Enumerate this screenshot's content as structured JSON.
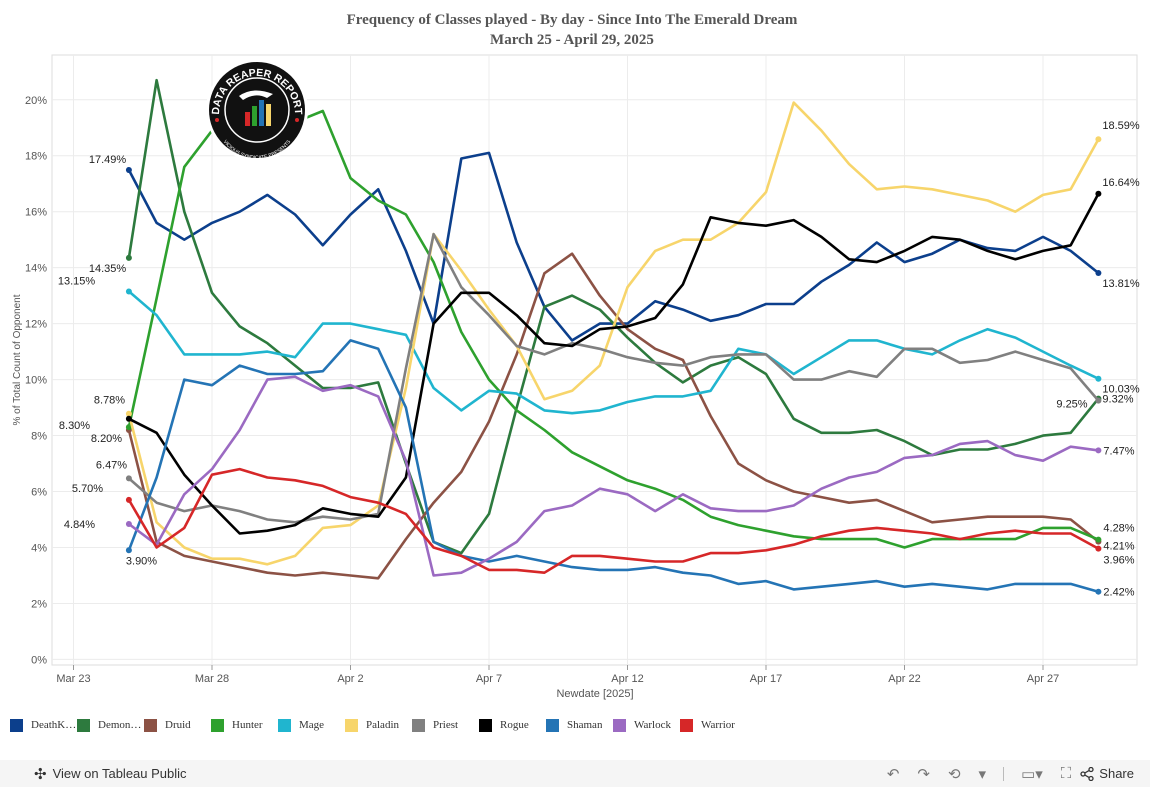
{
  "chart_data": {
    "type": "line",
    "title": "Frequency of Classes played - By day - Since Into The Emerald Dream",
    "subtitle": "March 25 - April 29, 2025",
    "xlabel": "Newdate [2025]",
    "ylabel": "% of Total Count of Opponent",
    "x": [
      "2025-03-25",
      "2025-03-26",
      "2025-03-27",
      "2025-03-28",
      "2025-03-29",
      "2025-03-30",
      "2025-03-31",
      "2025-04-01",
      "2025-04-02",
      "2025-04-03",
      "2025-04-04",
      "2025-04-05",
      "2025-04-06",
      "2025-04-07",
      "2025-04-08",
      "2025-04-09",
      "2025-04-10",
      "2025-04-11",
      "2025-04-12",
      "2025-04-13",
      "2025-04-14",
      "2025-04-15",
      "2025-04-16",
      "2025-04-17",
      "2025-04-18",
      "2025-04-19",
      "2025-04-20",
      "2025-04-21",
      "2025-04-22",
      "2025-04-23",
      "2025-04-24",
      "2025-04-25",
      "2025-04-26",
      "2025-04-27",
      "2025-04-28",
      "2025-04-29"
    ],
    "x_ticks": [
      "Mar 23",
      "Mar 28",
      "Apr 2",
      "Apr 7",
      "Apr 12",
      "Apr 17",
      "Apr 22",
      "Apr 27"
    ],
    "y_ticks": [
      "0%",
      "2%",
      "4%",
      "6%",
      "8%",
      "10%",
      "12%",
      "14%",
      "16%",
      "18%",
      "20%"
    ],
    "ylim": [
      -0.2,
      21.6
    ],
    "grid": true,
    "legend_position": "bottom",
    "series": [
      {
        "name": "DeathK…",
        "color": "#0c3f8c",
        "start_label": "17.49%",
        "end_label": "13.81%",
        "values": [
          17.49,
          15.6,
          15.0,
          15.6,
          16.0,
          16.6,
          15.9,
          14.8,
          15.9,
          16.8,
          14.6,
          12.0,
          17.9,
          18.1,
          14.9,
          12.6,
          11.4,
          12.0,
          12.0,
          12.8,
          12.5,
          12.1,
          12.3,
          12.7,
          12.7,
          13.5,
          14.1,
          14.9,
          14.2,
          14.5,
          15.0,
          14.7,
          14.6,
          15.1,
          14.6,
          13.81
        ]
      },
      {
        "name": "Demon…",
        "color": "#2d7a3e",
        "start_label": "14.35%",
        "end_label": "9.32%",
        "values": [
          14.35,
          20.7,
          16.0,
          13.1,
          11.9,
          11.3,
          10.5,
          9.7,
          9.7,
          9.9,
          7.0,
          4.2,
          3.8,
          5.2,
          9.0,
          12.6,
          13.0,
          12.5,
          11.5,
          10.6,
          9.9,
          10.5,
          10.8,
          10.2,
          8.6,
          8.1,
          8.1,
          8.2,
          7.8,
          7.3,
          7.5,
          7.5,
          7.7,
          8.0,
          8.1,
          9.32
        ]
      },
      {
        "name": "Druid",
        "color": "#8c5245",
        "start_label": "8.20%",
        "end_label": "4.21%",
        "values": [
          8.2,
          4.2,
          3.7,
          3.5,
          3.3,
          3.1,
          3.0,
          3.1,
          3.0,
          2.9,
          4.3,
          5.6,
          6.7,
          8.5,
          10.9,
          13.8,
          14.5,
          13.0,
          11.8,
          11.1,
          10.7,
          8.7,
          7.0,
          6.4,
          6.0,
          5.8,
          5.6,
          5.7,
          5.3,
          4.9,
          5.0,
          5.1,
          5.1,
          5.1,
          5.0,
          4.21
        ]
      },
      {
        "name": "Hunter",
        "color": "#2ea12e",
        "start_label": "8.30%",
        "end_label": "4.28%",
        "values": [
          8.3,
          12.9,
          17.6,
          18.9,
          18.8,
          19.3,
          19.2,
          19.6,
          17.2,
          16.4,
          15.9,
          14.2,
          11.7,
          10.0,
          8.9,
          8.2,
          7.4,
          6.9,
          6.4,
          6.1,
          5.7,
          5.1,
          4.8,
          4.6,
          4.4,
          4.3,
          4.3,
          4.3,
          4.0,
          4.3,
          4.3,
          4.3,
          4.3,
          4.7,
          4.7,
          4.28
        ]
      },
      {
        "name": "Mage",
        "color": "#20b5cf",
        "start_label": "13.15%",
        "end_label": "10.03%",
        "values": [
          13.15,
          12.3,
          10.9,
          10.9,
          10.9,
          11.0,
          10.8,
          12.0,
          12.0,
          11.8,
          11.6,
          9.7,
          8.9,
          9.6,
          9.5,
          8.9,
          8.8,
          8.9,
          9.2,
          9.4,
          9.4,
          9.6,
          11.1,
          10.9,
          10.2,
          10.8,
          11.4,
          11.4,
          11.1,
          10.9,
          11.4,
          11.8,
          11.5,
          11.0,
          10.5,
          10.03
        ]
      },
      {
        "name": "Paladin",
        "color": "#f7d56b",
        "start_label": "8.78%",
        "end_label": "18.59%",
        "values": [
          8.78,
          4.9,
          4.0,
          3.6,
          3.6,
          3.4,
          3.7,
          4.7,
          4.8,
          5.5,
          9.7,
          15.2,
          13.9,
          12.5,
          11.2,
          9.3,
          9.6,
          10.5,
          13.3,
          14.6,
          15.0,
          15.0,
          15.6,
          16.7,
          19.9,
          18.9,
          17.7,
          16.8,
          16.9,
          16.8,
          16.6,
          16.4,
          16.0,
          16.6,
          16.8,
          18.59
        ]
      },
      {
        "name": "Priest",
        "color": "#808080",
        "start_label": "6.47%",
        "end_label": "9.25%",
        "values": [
          6.47,
          5.6,
          5.3,
          5.5,
          5.3,
          5.0,
          4.9,
          5.1,
          5.0,
          5.2,
          10.4,
          15.2,
          13.3,
          12.3,
          11.2,
          10.9,
          11.3,
          11.1,
          10.8,
          10.6,
          10.5,
          10.8,
          10.9,
          10.9,
          10.0,
          10.0,
          10.3,
          10.1,
          11.1,
          11.1,
          10.6,
          10.7,
          11.0,
          10.7,
          10.4,
          9.25
        ]
      },
      {
        "name": "Rogue",
        "color": "#000000",
        "start_label": "8.60%",
        "end_label": "16.64%",
        "values": [
          8.6,
          8.1,
          6.6,
          5.5,
          4.5,
          4.6,
          4.8,
          5.4,
          5.2,
          5.1,
          6.5,
          12.0,
          13.1,
          13.1,
          12.3,
          11.3,
          11.2,
          11.8,
          11.9,
          12.2,
          13.4,
          15.8,
          15.6,
          15.5,
          15.7,
          15.1,
          14.3,
          14.2,
          14.6,
          15.1,
          15.0,
          14.6,
          14.3,
          14.6,
          14.8,
          16.64
        ]
      },
      {
        "name": "Shaman",
        "color": "#2474b5",
        "start_label": "3.90%",
        "end_label": "2.42%",
        "values": [
          3.9,
          6.5,
          10.0,
          9.8,
          10.5,
          10.2,
          10.2,
          10.3,
          11.4,
          11.1,
          9.0,
          4.2,
          3.7,
          3.5,
          3.7,
          3.5,
          3.3,
          3.2,
          3.2,
          3.3,
          3.1,
          3.0,
          2.7,
          2.8,
          2.5,
          2.6,
          2.7,
          2.8,
          2.6,
          2.7,
          2.6,
          2.5,
          2.7,
          2.7,
          2.7,
          2.42
        ]
      },
      {
        "name": "Warlock",
        "color": "#9b6ac2",
        "start_label": "4.84%",
        "end_label": "7.47%",
        "values": [
          4.84,
          4.1,
          5.9,
          6.8,
          8.2,
          10.0,
          10.1,
          9.6,
          9.8,
          9.4,
          7.1,
          3.0,
          3.1,
          3.6,
          4.2,
          5.3,
          5.5,
          6.1,
          5.9,
          5.3,
          5.9,
          5.4,
          5.3,
          5.3,
          5.5,
          6.1,
          6.5,
          6.7,
          7.2,
          7.3,
          7.7,
          7.8,
          7.3,
          7.1,
          7.6,
          7.47
        ]
      },
      {
        "name": "Warrior",
        "color": "#d62728",
        "start_label": "5.70%",
        "end_label": "3.96%",
        "values": [
          5.7,
          4.0,
          4.7,
          6.6,
          6.8,
          6.5,
          6.4,
          6.2,
          5.8,
          5.6,
          5.2,
          4.0,
          3.7,
          3.2,
          3.2,
          3.1,
          3.7,
          3.7,
          3.6,
          3.5,
          3.5,
          3.8,
          3.8,
          3.9,
          4.1,
          4.4,
          4.6,
          4.7,
          4.6,
          4.5,
          4.3,
          4.5,
          4.6,
          4.5,
          4.5,
          3.96
        ]
      }
    ]
  },
  "logo": {
    "text_top": "DATA REAPER REPORT",
    "text_bottom": "VICIOUS SYNDICATE PRESENTS"
  },
  "footer": {
    "view_label": "View on Tableau Public",
    "share_label": "Share"
  }
}
